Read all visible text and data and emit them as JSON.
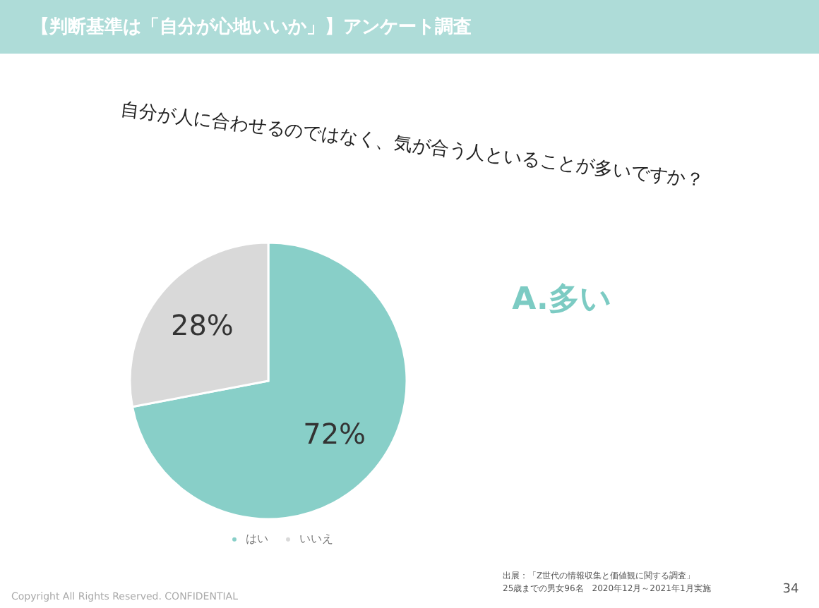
{
  "chart_data": {
    "type": "pie",
    "title": "【判断基準は「自分が心地いいか」】アンケート調査",
    "categories": [
      "はい",
      "いいえ"
    ],
    "values": [
      72,
      28
    ],
    "colors": [
      "#88cfc8",
      "#d9d9d9"
    ],
    "value_labels": [
      "72%",
      "28%"
    ],
    "legend": "bottom",
    "annotations": [
      "自分が人に合わせるのではなく、気が合う人といることが多いですか？",
      "A.多い",
      "出展：「Z世代の情報収集と価値観に関する調査」",
      "25歳までの男女96名　2020年12月～2021年1月実施",
      "Copyright All Rights Reserved. CONFIDENTIAL",
      "34"
    ]
  }
}
